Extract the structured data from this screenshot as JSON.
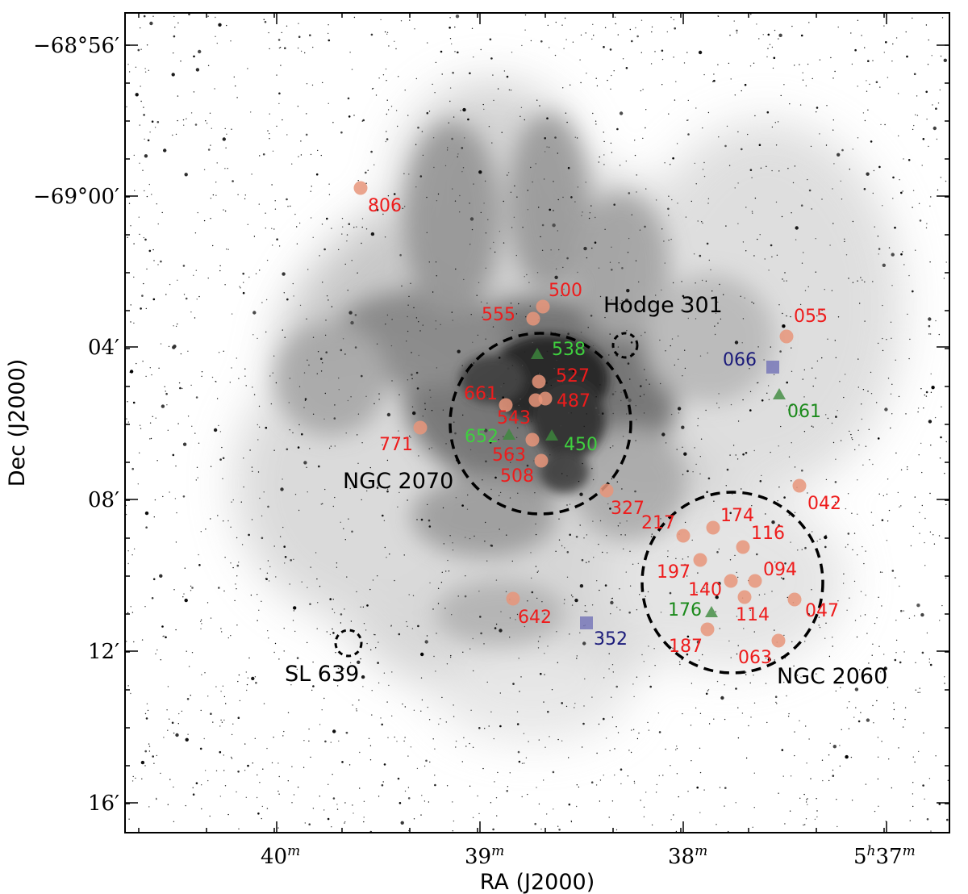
{
  "axes": {
    "x_title": "RA (J2000)",
    "y_title": "Dec (J2000)",
    "x_ticks": [
      {
        "main": "40",
        "sup": "m"
      },
      {
        "main": "39",
        "sup": "m"
      },
      {
        "main": "38",
        "sup": "m"
      },
      {
        "main": "5",
        "sup": "h",
        "main2": "37",
        "sup2": "m"
      }
    ],
    "y_ticks": [
      "−68°56′",
      "−69°00′",
      "04′",
      "08′",
      "12′",
      "16′"
    ]
  },
  "colors": {
    "frame": "#000000",
    "orange_marker": "#e8957a",
    "green_marker": "#3d8a3d",
    "blue_marker": "#7878b8",
    "label_red": "#ee1c1c",
    "label_green": "#1b8a1b",
    "label_bright_green": "#3fcf3f",
    "label_blue": "#1a1a7a",
    "nebula": "#555555"
  },
  "clusters": [
    {
      "name": "NGC 2070"
    },
    {
      "name": "NGC 2060"
    },
    {
      "name": "Hodge 301"
    },
    {
      "name": "SL 639"
    }
  ],
  "stars": [
    {
      "id": "806",
      "marker": "circle"
    },
    {
      "id": "555",
      "marker": "circle"
    },
    {
      "id": "500",
      "marker": "circle"
    },
    {
      "id": "055",
      "marker": "circle"
    },
    {
      "id": "538",
      "marker": "triangle"
    },
    {
      "id": "066",
      "marker": "square"
    },
    {
      "id": "527",
      "marker": "circle"
    },
    {
      "id": "661",
      "marker": "circle"
    },
    {
      "id": "487",
      "marker": "circle"
    },
    {
      "id": "061",
      "marker": "triangle"
    },
    {
      "id": "543",
      "marker": "circle"
    },
    {
      "id": "771",
      "marker": "circle"
    },
    {
      "id": "652",
      "marker": "triangle"
    },
    {
      "id": "450",
      "marker": "triangle"
    },
    {
      "id": "563",
      "marker": "circle"
    },
    {
      "id": "508",
      "marker": "circle"
    },
    {
      "id": "327",
      "marker": "circle"
    },
    {
      "id": "042",
      "marker": "circle"
    },
    {
      "id": "217",
      "marker": "circle"
    },
    {
      "id": "174",
      "marker": "circle"
    },
    {
      "id": "116",
      "marker": "circle"
    },
    {
      "id": "197",
      "marker": "circle"
    },
    {
      "id": "094",
      "marker": "circle"
    },
    {
      "id": "140",
      "marker": "circle"
    },
    {
      "id": "642",
      "marker": "circle"
    },
    {
      "id": "176",
      "marker": "triangle"
    },
    {
      "id": "114",
      "marker": "circle"
    },
    {
      "id": "047",
      "marker": "circle"
    },
    {
      "id": "352",
      "marker": "square"
    },
    {
      "id": "187",
      "marker": "circle"
    },
    {
      "id": "063",
      "marker": "circle"
    }
  ]
}
